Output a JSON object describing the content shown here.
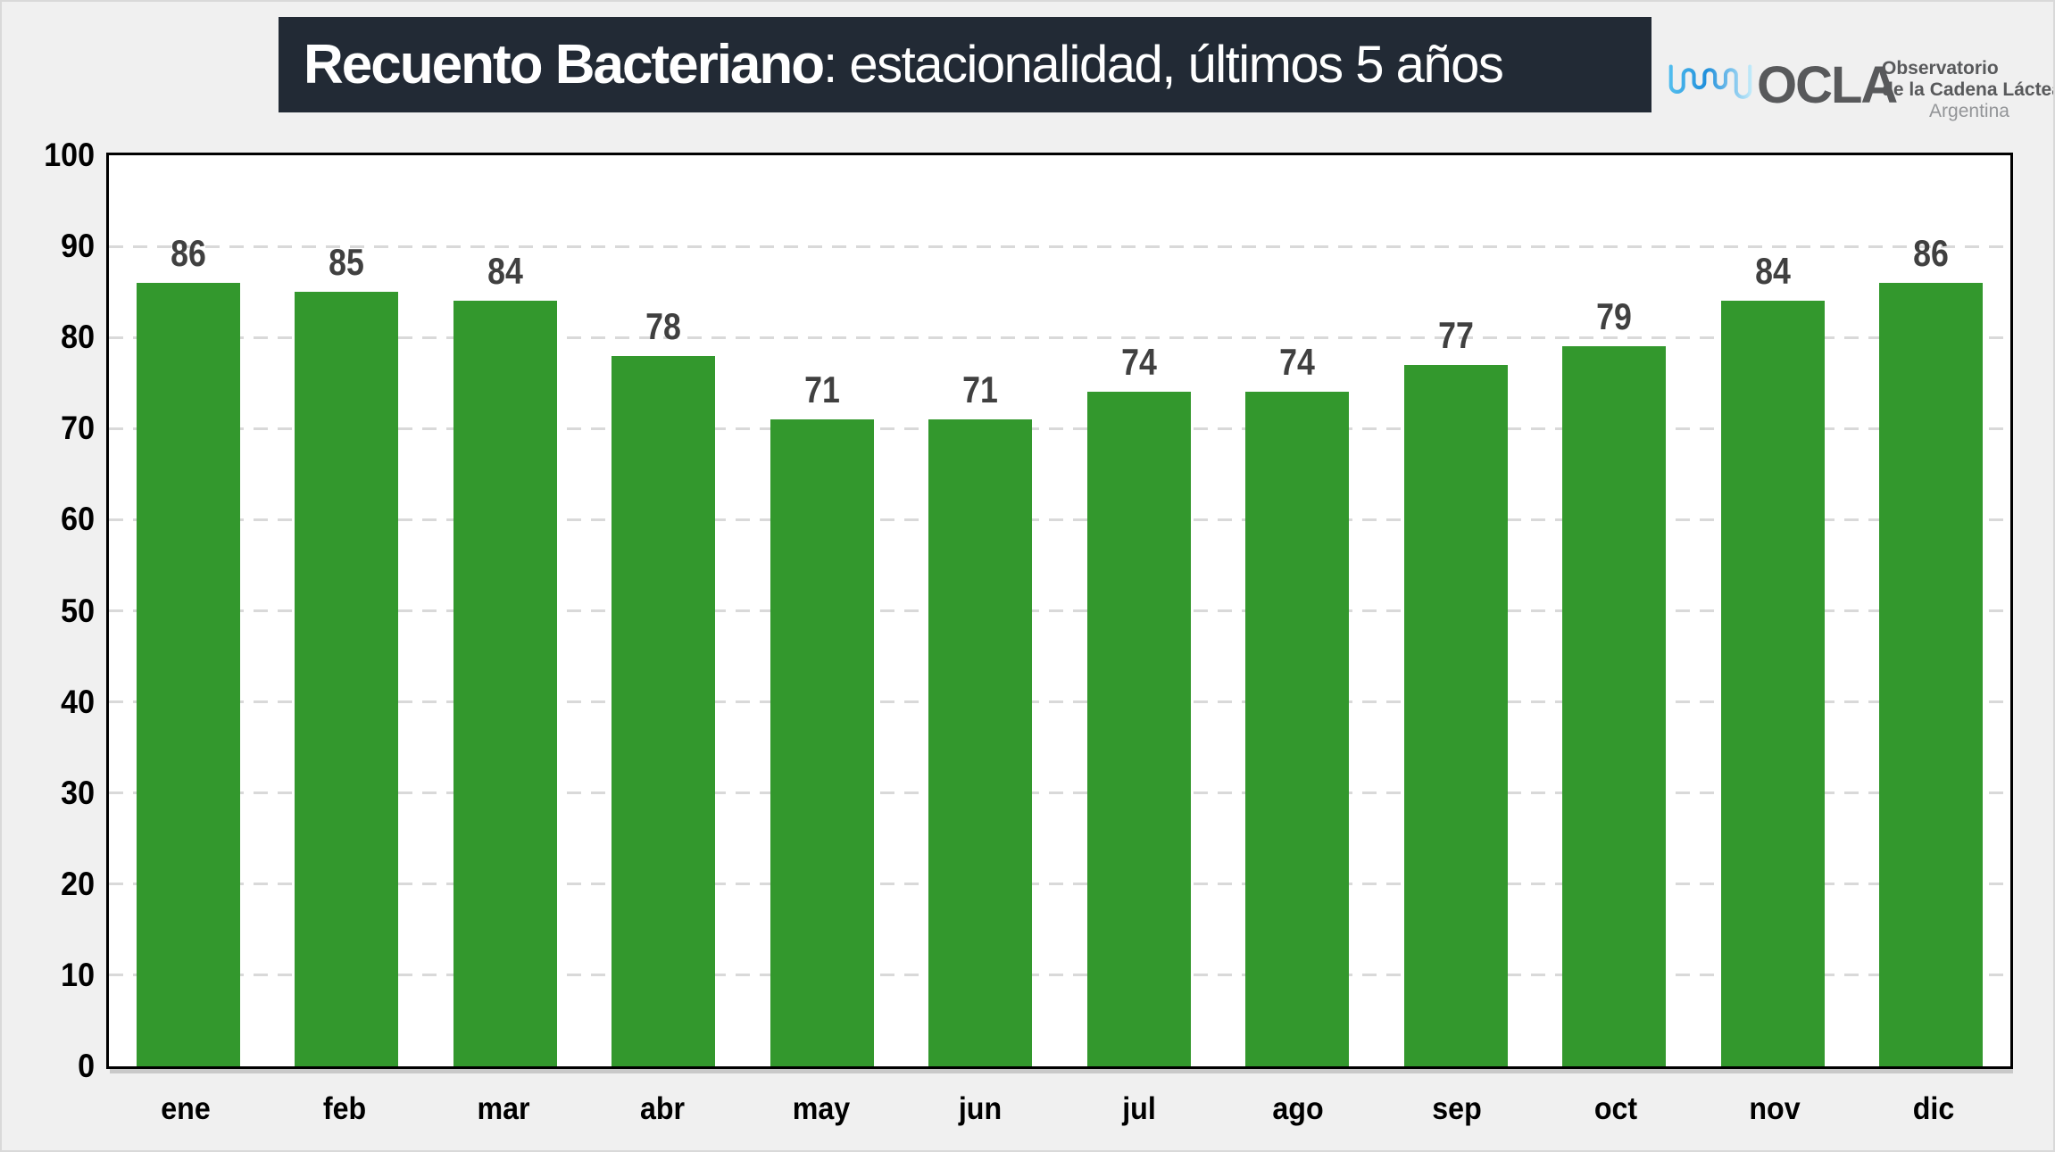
{
  "title": {
    "bold": "Recuento Bacteriano",
    "rest": ": estacionalidad, últimos 5 años"
  },
  "logo": {
    "acronym": "OCLA",
    "line1": "Observatorio",
    "line2": "de la Cadena Láctea",
    "line3": "Argentina"
  },
  "colors": {
    "page_bg": "#f0f0f0",
    "frame": "#d9d9d9",
    "banner_bg": "#222a35",
    "banner_text": "#ffffff",
    "bar": "#33982d",
    "value_label": "#404040",
    "axis_text": "#000000",
    "gridline": "#d9d9d9",
    "plot_border": "#000000",
    "logo_text": "#58595b",
    "logo_muted": "#939598",
    "wave_start": "#55c0ef",
    "wave_mid": "#1f8fdb",
    "wave_end": "#c9eefb"
  },
  "chart_data": {
    "type": "bar",
    "title": "Recuento Bacteriano: estacionalidad, últimos 5 años",
    "categories": [
      "ene",
      "feb",
      "mar",
      "abr",
      "may",
      "jun",
      "jul",
      "ago",
      "sep",
      "oct",
      "nov",
      "dic"
    ],
    "values": [
      86,
      85,
      84,
      78,
      71,
      71,
      74,
      74,
      77,
      79,
      84,
      86
    ],
    "xlabel": "",
    "ylabel": "",
    "ylim": [
      0,
      100
    ],
    "yticks": [
      0,
      10,
      20,
      30,
      40,
      50,
      60,
      70,
      80,
      90,
      100
    ],
    "grid": "horizontal-dashed",
    "legend": "none",
    "value_labels": true,
    "bar_color": "#33982d"
  }
}
